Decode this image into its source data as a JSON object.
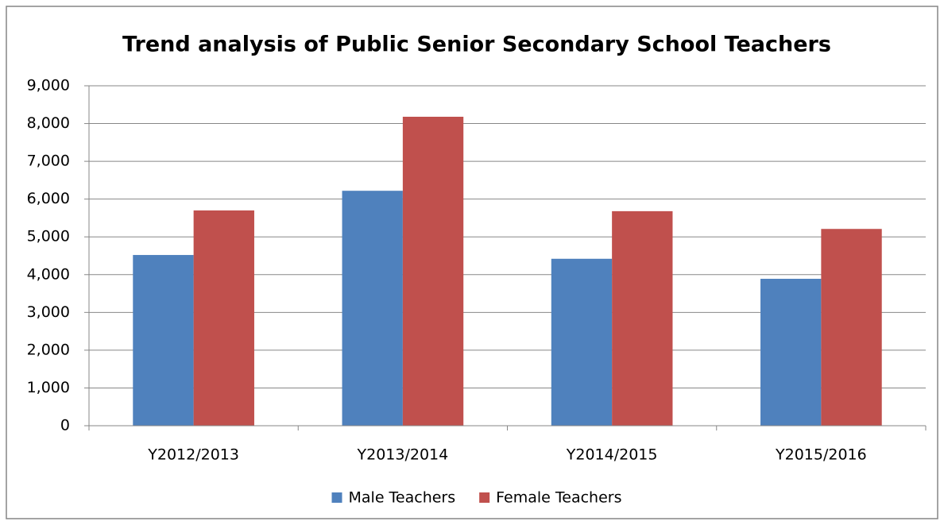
{
  "chart_data": {
    "type": "bar",
    "title": "Trend analysis of Public Senior Secondary School Teachers",
    "categories": [
      "Y2012/2013",
      "Y2013/2014",
      "Y2014/2015",
      "Y2015/2016"
    ],
    "series": [
      {
        "name": "Male Teachers",
        "color": "#4f81bd",
        "values": [
          4520,
          6220,
          4420,
          3890
        ]
      },
      {
        "name": "Female Teachers",
        "color": "#c0504d",
        "values": [
          5700,
          8180,
          5680,
          5210
        ]
      }
    ],
    "ylim": [
      0,
      9000
    ],
    "yticks": [
      0,
      {
        "value": 1000,
        "label": "1,000"
      },
      {
        "value": 2000,
        "label": "2,000"
      },
      {
        "value": 3000,
        "label": "3,000"
      },
      {
        "value": 4000,
        "label": "4,000"
      },
      {
        "value": 5000,
        "label": "5,000"
      },
      {
        "value": 6000,
        "label": "6,000"
      },
      {
        "value": 7000,
        "label": "7,000"
      },
      {
        "value": 8000,
        "label": "8,000"
      },
      {
        "value": 9000,
        "label": "9,000"
      }
    ],
    "grid": true,
    "legend": "bottom"
  }
}
